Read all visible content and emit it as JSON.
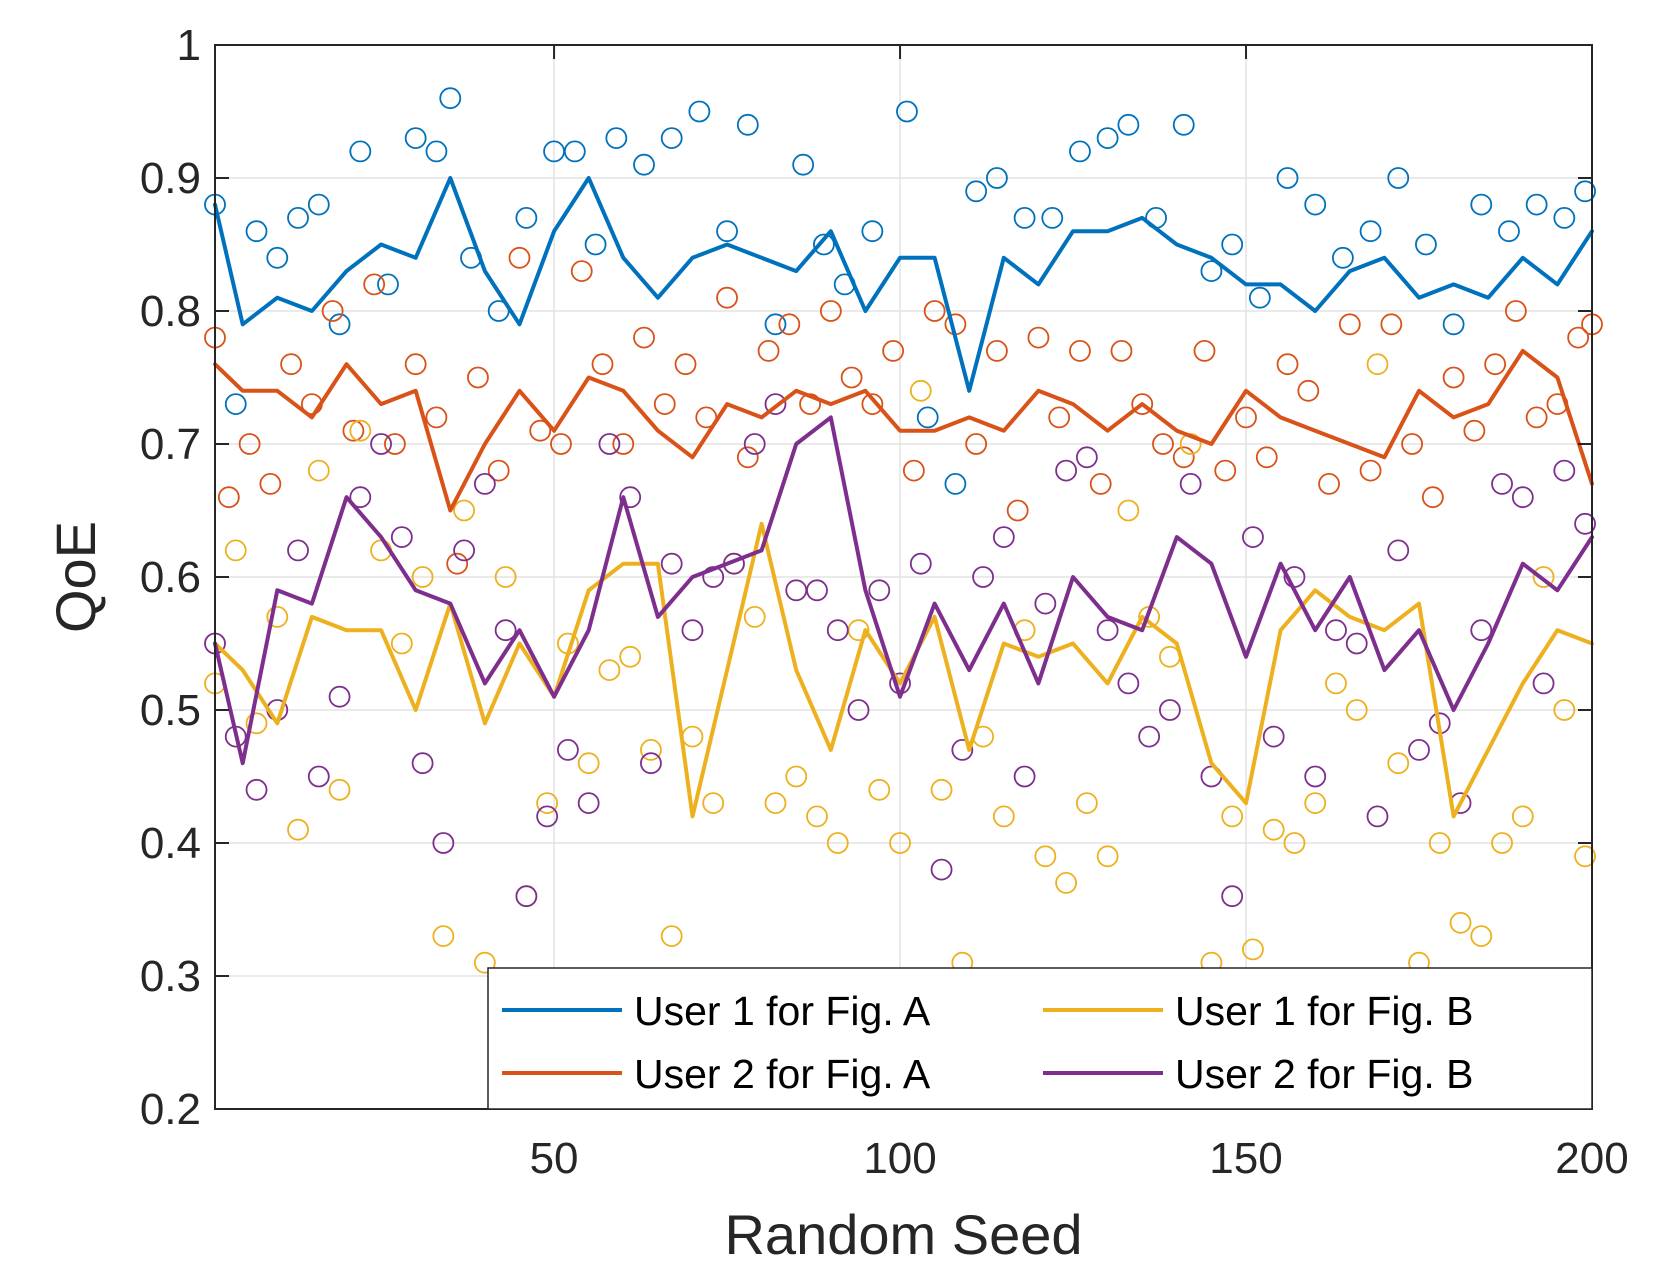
{
  "chart_data": {
    "type": "line",
    "title": "",
    "xlabel": "Random Seed",
    "ylabel": "QoE",
    "xlim": [
      1,
      200
    ],
    "ylim": [
      0.2,
      1.0
    ],
    "x_ticks": [
      50,
      100,
      150,
      200
    ],
    "x_tick_labels": [
      "50",
      "100",
      "150",
      "200"
    ],
    "y_ticks": [
      0.2,
      0.3,
      0.4,
      0.5,
      0.6,
      0.7,
      0.8,
      0.9,
      1.0
    ],
    "y_tick_labels": [
      "0.2",
      "0.3",
      "0.4",
      "0.5",
      "0.6",
      "0.7",
      "0.8",
      "0.9",
      "1"
    ],
    "grid": true,
    "legend": {
      "location": "bottom-right",
      "columns": 2
    },
    "notes": "Each series is drawn as a solid line (smoothed trend) plus hollow circle markers (per-seed scattered values). Line values are sampled every 5 seeds; marker values are a representative sample read from the figure.",
    "series": [
      {
        "name": "User 1 for Fig. A",
        "color": "#0072BD",
        "line": {
          "x": [
            1,
            5,
            10,
            15,
            20,
            25,
            30,
            35,
            40,
            45,
            50,
            55,
            60,
            65,
            70,
            75,
            80,
            85,
            90,
            95,
            100,
            105,
            110,
            115,
            120,
            125,
            130,
            135,
            140,
            145,
            150,
            155,
            160,
            165,
            170,
            175,
            180,
            185,
            190,
            195,
            200
          ],
          "y": [
            0.88,
            0.79,
            0.81,
            0.8,
            0.83,
            0.85,
            0.84,
            0.9,
            0.83,
            0.79,
            0.86,
            0.9,
            0.84,
            0.81,
            0.84,
            0.85,
            0.84,
            0.83,
            0.86,
            0.8,
            0.84,
            0.84,
            0.74,
            0.84,
            0.82,
            0.86,
            0.86,
            0.87,
            0.85,
            0.84,
            0.82,
            0.82,
            0.8,
            0.83,
            0.84,
            0.81,
            0.82,
            0.81,
            0.84,
            0.82,
            0.86
          ]
        },
        "markers": {
          "x": [
            1,
            4,
            7,
            10,
            13,
            16,
            19,
            22,
            26,
            30,
            33,
            35,
            38,
            42,
            46,
            50,
            53,
            56,
            59,
            63,
            67,
            71,
            75,
            78,
            82,
            86,
            89,
            92,
            96,
            101,
            104,
            108,
            111,
            114,
            118,
            122,
            126,
            130,
            133,
            137,
            141,
            145,
            148,
            152,
            156,
            160,
            164,
            168,
            172,
            176,
            180,
            184,
            188,
            192,
            196,
            199
          ],
          "y": [
            0.88,
            0.73,
            0.86,
            0.84,
            0.87,
            0.88,
            0.79,
            0.92,
            0.82,
            0.93,
            0.92,
            0.96,
            0.84,
            0.8,
            0.87,
            0.92,
            0.92,
            0.85,
            0.93,
            0.91,
            0.93,
            0.95,
            0.86,
            0.94,
            0.79,
            0.91,
            0.85,
            0.82,
            0.86,
            0.95,
            0.72,
            0.67,
            0.89,
            0.9,
            0.87,
            0.87,
            0.92,
            0.93,
            0.94,
            0.87,
            0.94,
            0.83,
            0.85,
            0.81,
            0.9,
            0.88,
            0.84,
            0.86,
            0.9,
            0.85,
            0.79,
            0.88,
            0.86,
            0.88,
            0.87,
            0.89
          ]
        }
      },
      {
        "name": "User 2 for Fig. A",
        "color": "#D95319",
        "line": {
          "x": [
            1,
            5,
            10,
            15,
            20,
            25,
            30,
            35,
            40,
            45,
            50,
            55,
            60,
            65,
            70,
            75,
            80,
            85,
            90,
            95,
            100,
            105,
            110,
            115,
            120,
            125,
            130,
            135,
            140,
            145,
            150,
            155,
            160,
            165,
            170,
            175,
            180,
            185,
            190,
            195,
            200
          ],
          "y": [
            0.76,
            0.74,
            0.74,
            0.72,
            0.76,
            0.73,
            0.74,
            0.65,
            0.7,
            0.74,
            0.71,
            0.75,
            0.74,
            0.71,
            0.69,
            0.73,
            0.72,
            0.74,
            0.73,
            0.74,
            0.71,
            0.71,
            0.72,
            0.71,
            0.74,
            0.73,
            0.71,
            0.73,
            0.71,
            0.7,
            0.74,
            0.72,
            0.71,
            0.7,
            0.69,
            0.74,
            0.72,
            0.73,
            0.77,
            0.75,
            0.67
          ]
        },
        "markers": {
          "x": [
            1,
            3,
            6,
            9,
            12,
            15,
            18,
            21,
            24,
            27,
            30,
            33,
            36,
            39,
            42,
            45,
            48,
            51,
            54,
            57,
            60,
            63,
            66,
            69,
            72,
            75,
            78,
            81,
            84,
            87,
            90,
            93,
            96,
            99,
            102,
            105,
            108,
            111,
            114,
            117,
            120,
            123,
            126,
            129,
            132,
            135,
            138,
            141,
            144,
            147,
            150,
            153,
            156,
            159,
            162,
            165,
            168,
            171,
            174,
            177,
            180,
            183,
            186,
            189,
            192,
            195,
            198,
            200
          ],
          "y": [
            0.78,
            0.66,
            0.7,
            0.67,
            0.76,
            0.73,
            0.8,
            0.71,
            0.82,
            0.7,
            0.76,
            0.72,
            0.61,
            0.75,
            0.68,
            0.84,
            0.71,
            0.7,
            0.83,
            0.76,
            0.7,
            0.78,
            0.73,
            0.76,
            0.72,
            0.81,
            0.69,
            0.77,
            0.79,
            0.73,
            0.8,
            0.75,
            0.73,
            0.77,
            0.68,
            0.8,
            0.79,
            0.7,
            0.77,
            0.65,
            0.78,
            0.72,
            0.77,
            0.67,
            0.77,
            0.73,
            0.7,
            0.69,
            0.77,
            0.68,
            0.72,
            0.69,
            0.76,
            0.74,
            0.67,
            0.79,
            0.68,
            0.79,
            0.7,
            0.66,
            0.75,
            0.71,
            0.76,
            0.8,
            0.72,
            0.73,
            0.78,
            0.79
          ]
        }
      },
      {
        "name": "User 1 for Fig. B",
        "color": "#EDB120",
        "line": {
          "x": [
            1,
            5,
            10,
            15,
            20,
            25,
            30,
            35,
            40,
            45,
            50,
            55,
            60,
            65,
            70,
            75,
            80,
            85,
            90,
            95,
            100,
            105,
            110,
            115,
            120,
            125,
            130,
            135,
            140,
            145,
            150,
            155,
            160,
            165,
            170,
            175,
            180,
            185,
            190,
            195,
            200
          ],
          "y": [
            0.55,
            0.53,
            0.49,
            0.57,
            0.56,
            0.56,
            0.5,
            0.58,
            0.49,
            0.55,
            0.51,
            0.59,
            0.61,
            0.61,
            0.42,
            0.53,
            0.64,
            0.53,
            0.47,
            0.56,
            0.52,
            0.57,
            0.47,
            0.55,
            0.54,
            0.55,
            0.52,
            0.57,
            0.55,
            0.46,
            0.43,
            0.56,
            0.59,
            0.57,
            0.56,
            0.58,
            0.42,
            0.47,
            0.52,
            0.56,
            0.55
          ]
        },
        "markers": {
          "x": [
            1,
            4,
            7,
            10,
            13,
            16,
            19,
            22,
            25,
            28,
            31,
            34,
            37,
            40,
            43,
            46,
            49,
            52,
            55,
            58,
            61,
            64,
            67,
            70,
            73,
            76,
            79,
            82,
            85,
            88,
            91,
            94,
            97,
            100,
            103,
            106,
            109,
            112,
            115,
            118,
            121,
            124,
            127,
            130,
            133,
            136,
            139,
            142,
            145,
            148,
            151,
            154,
            157,
            160,
            163,
            166,
            169,
            172,
            175,
            178,
            181,
            184,
            187,
            190,
            193,
            196,
            199
          ],
          "y": [
            0.52,
            0.62,
            0.49,
            0.57,
            0.41,
            0.68,
            0.44,
            0.71,
            0.62,
            0.55,
            0.6,
            0.33,
            0.65,
            0.31,
            0.6,
            0.36,
            0.43,
            0.55,
            0.46,
            0.53,
            0.54,
            0.47,
            0.33,
            0.48,
            0.43,
            0.61,
            0.57,
            0.43,
            0.45,
            0.42,
            0.4,
            0.56,
            0.44,
            0.4,
            0.74,
            0.44,
            0.31,
            0.48,
            0.42,
            0.56,
            0.39,
            0.37,
            0.43,
            0.39,
            0.65,
            0.57,
            0.54,
            0.7,
            0.31,
            0.42,
            0.32,
            0.41,
            0.4,
            0.43,
            0.52,
            0.5,
            0.76,
            0.46,
            0.31,
            0.4,
            0.34,
            0.33,
            0.4,
            0.42,
            0.6,
            0.5,
            0.39
          ]
        }
      },
      {
        "name": "User 2 for Fig. B",
        "color": "#7E2F8E",
        "line": {
          "x": [
            1,
            5,
            10,
            15,
            20,
            25,
            30,
            35,
            40,
            45,
            50,
            55,
            60,
            65,
            70,
            75,
            80,
            85,
            90,
            95,
            100,
            105,
            110,
            115,
            120,
            125,
            130,
            135,
            140,
            145,
            150,
            155,
            160,
            165,
            170,
            175,
            180,
            185,
            190,
            195,
            200
          ],
          "y": [
            0.55,
            0.46,
            0.59,
            0.58,
            0.66,
            0.63,
            0.59,
            0.58,
            0.52,
            0.56,
            0.51,
            0.56,
            0.66,
            0.57,
            0.6,
            0.61,
            0.62,
            0.7,
            0.72,
            0.59,
            0.51,
            0.58,
            0.53,
            0.58,
            0.52,
            0.6,
            0.57,
            0.56,
            0.63,
            0.61,
            0.54,
            0.61,
            0.56,
            0.6,
            0.53,
            0.56,
            0.5,
            0.55,
            0.61,
            0.59,
            0.63
          ]
        },
        "markers": {
          "x": [
            1,
            4,
            7,
            10,
            13,
            16,
            19,
            22,
            25,
            28,
            31,
            34,
            37,
            40,
            43,
            46,
            49,
            52,
            55,
            58,
            61,
            64,
            67,
            70,
            73,
            76,
            79,
            82,
            85,
            88,
            91,
            94,
            97,
            100,
            103,
            106,
            109,
            112,
            115,
            118,
            121,
            124,
            127,
            130,
            133,
            136,
            139,
            142,
            145,
            148,
            151,
            154,
            157,
            160,
            163,
            166,
            169,
            172,
            175,
            178,
            181,
            184,
            187,
            190,
            193,
            196,
            199
          ],
          "y": [
            0.55,
            0.48,
            0.44,
            0.5,
            0.62,
            0.45,
            0.51,
            0.66,
            0.7,
            0.63,
            0.46,
            0.4,
            0.62,
            0.67,
            0.56,
            0.36,
            0.42,
            0.47,
            0.43,
            0.7,
            0.66,
            0.46,
            0.61,
            0.56,
            0.6,
            0.61,
            0.7,
            0.73,
            0.59,
            0.59,
            0.56,
            0.5,
            0.59,
            0.52,
            0.61,
            0.38,
            0.47,
            0.6,
            0.63,
            0.45,
            0.58,
            0.68,
            0.69,
            0.56,
            0.52,
            0.48,
            0.5,
            0.67,
            0.45,
            0.36,
            0.63,
            0.48,
            0.6,
            0.45,
            0.56,
            0.55,
            0.42,
            0.62,
            0.47,
            0.49,
            0.43,
            0.56,
            0.67,
            0.66,
            0.52,
            0.68,
            0.64
          ]
        }
      }
    ]
  }
}
